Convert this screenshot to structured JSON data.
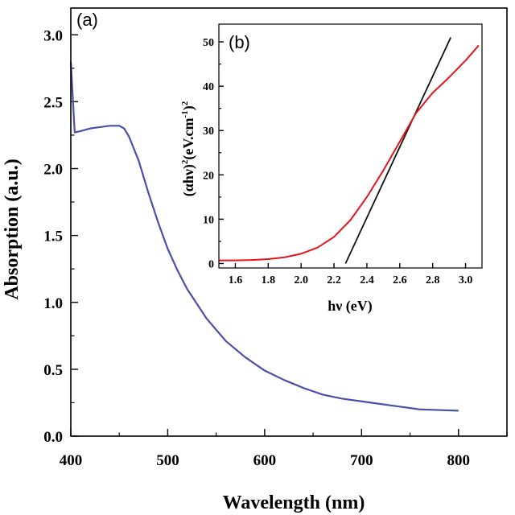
{
  "chart_data": [
    {
      "panel_label": "(a)",
      "type": "line",
      "xlabel": "Wavelength (nm)",
      "ylabel": "Absorption (a.u.)",
      "xlim": [
        400,
        850
      ],
      "ylim": [
        0,
        3.2
      ],
      "xticks": [
        400,
        500,
        600,
        700,
        800
      ],
      "yticks": [
        0.0,
        0.5,
        1.0,
        1.5,
        2.0,
        2.5,
        3.0
      ],
      "xtick_labels": [
        "400",
        "500",
        "600",
        "700",
        "800"
      ],
      "ytick_labels": [
        "0.0",
        "0.5",
        "1.0",
        "1.5",
        "2.0",
        "2.5",
        "3.0"
      ],
      "series": [
        {
          "color": "#4a4fa8",
          "x": [
            400,
            404,
            410,
            420,
            430,
            440,
            450,
            455,
            460,
            470,
            480,
            490,
            500,
            510,
            520,
            540,
            560,
            580,
            600,
            620,
            640,
            660,
            680,
            700,
            720,
            740,
            760,
            780,
            800
          ],
          "y": [
            2.8,
            2.27,
            2.28,
            2.3,
            2.31,
            2.32,
            2.32,
            2.3,
            2.24,
            2.06,
            1.82,
            1.6,
            1.4,
            1.24,
            1.1,
            0.88,
            0.71,
            0.59,
            0.49,
            0.42,
            0.36,
            0.31,
            0.28,
            0.26,
            0.24,
            0.22,
            0.2,
            0.195,
            0.19
          ]
        }
      ]
    },
    {
      "panel_label": "(b)",
      "type": "line",
      "xlabel": "hν (eV)",
      "ylabel_parts": [
        "(αhν)",
        "2",
        "(eV.cm",
        "-1",
        ")",
        "2"
      ],
      "xlim": [
        1.5,
        3.1
      ],
      "ylim": [
        -1,
        54
      ],
      "xticks": [
        1.6,
        1.8,
        2.0,
        2.2,
        2.4,
        2.6,
        2.8,
        3.0
      ],
      "yticks": [
        0,
        10,
        20,
        30,
        40,
        50
      ],
      "xtick_labels": [
        "1.6",
        "1.8",
        "2.0",
        "2.2",
        "2.4",
        "2.6",
        "2.8",
        "3.0"
      ],
      "ytick_labels": [
        "0",
        "10",
        "20",
        "30",
        "40",
        "50"
      ],
      "series": [
        {
          "color": "#e8141c",
          "x": [
            1.5,
            1.6,
            1.7,
            1.8,
            1.9,
            2.0,
            2.1,
            2.2,
            2.3,
            2.4,
            2.5,
            2.6,
            2.7,
            2.8,
            2.9,
            3.0,
            3.08
          ],
          "y": [
            0.7,
            0.7,
            0.8,
            1.0,
            1.4,
            2.2,
            3.6,
            6.0,
            9.8,
            15.0,
            21.0,
            27.5,
            34.0,
            38.5,
            42.0,
            45.8,
            49.2
          ]
        },
        {
          "color": "#111111",
          "x": [
            2.27,
            2.91
          ],
          "y": [
            0.0,
            51.0
          ]
        }
      ]
    }
  ]
}
